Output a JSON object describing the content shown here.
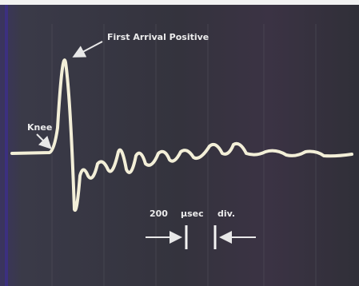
{
  "annotations": {
    "first_arrival": "First Arrival Positive",
    "knee": "Knee",
    "scale": {
      "value": "200",
      "unit": "μsec",
      "per": "div."
    }
  }
}
